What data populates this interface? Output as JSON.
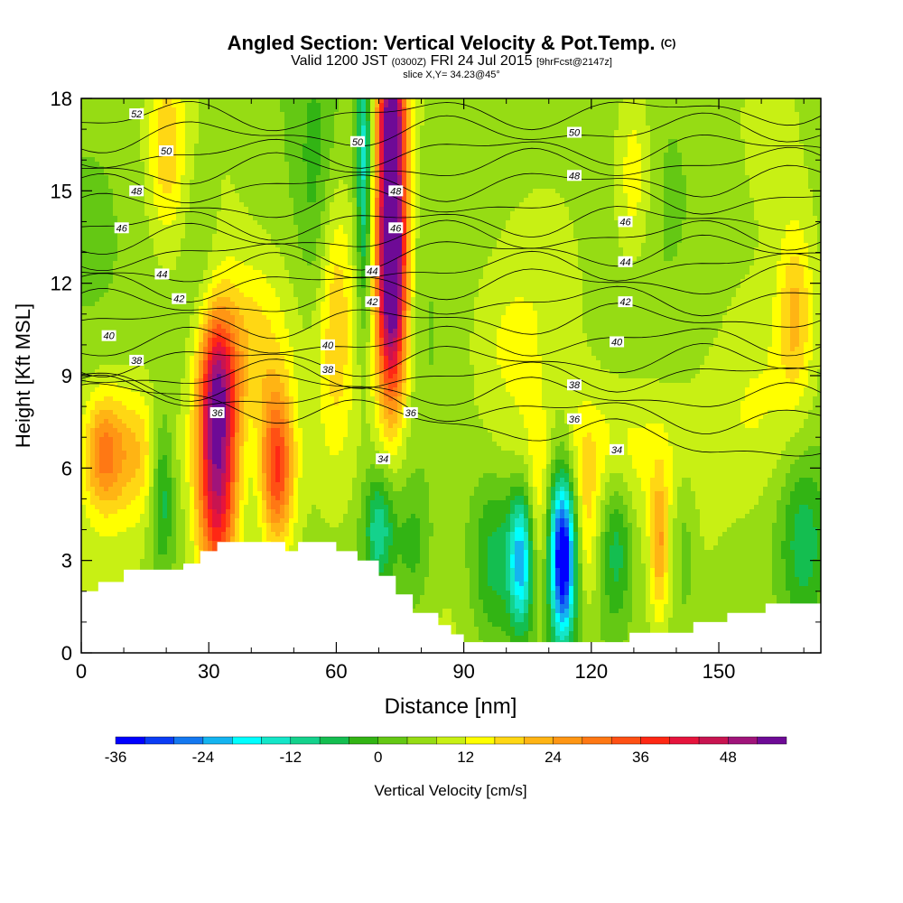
{
  "header": {
    "title_main": "Angled Section: Vertical Velocity & Pot.Temp.",
    "title_mark": "(C)",
    "valid_pre": "Valid 1200 JST",
    "valid_utc": "(0300Z)",
    "valid_date": "FRI 24 Jul 2015",
    "valid_fcst": "[9hrFcst@2147z]",
    "slice": "slice X,Y= 34.23@45°"
  },
  "colors": {
    "palette": [
      "#0000ff",
      "#0a3cf5",
      "#1478f0",
      "#14b4f0",
      "#00ffff",
      "#14e6c8",
      "#14d28c",
      "#14be50",
      "#32b414",
      "#64c814",
      "#96dc14",
      "#c8f014",
      "#ffff00",
      "#ffd714",
      "#ffb414",
      "#ff9614",
      "#ff7814",
      "#ff5014",
      "#ff2814",
      "#e6143c",
      "#c81450",
      "#a0147a",
      "#6e0a96"
    ],
    "terrain": "#ffffff",
    "contour": "#000000"
  },
  "chart_data": {
    "type": "heatmap",
    "xlabel": "Distance [nm]",
    "ylabel": "Height [Kft MSL]",
    "xlim": [
      0,
      174
    ],
    "ylim": [
      0,
      18
    ],
    "xticks": [
      0,
      30,
      60,
      90,
      120,
      150
    ],
    "yticks": [
      0,
      3,
      6,
      9,
      12,
      15,
      18
    ],
    "colorbar": {
      "label": "Vertical Velocity [cm/s]",
      "min": -36,
      "step": 4,
      "tick_values": [
        -36,
        -24,
        -12,
        0,
        12,
        24,
        36,
        48
      ]
    },
    "terrain": [
      [
        0,
        2.0
      ],
      [
        4,
        2.0
      ],
      [
        4,
        2.3
      ],
      [
        10,
        2.3
      ],
      [
        10,
        2.7
      ],
      [
        24,
        2.7
      ],
      [
        24,
        2.9
      ],
      [
        28,
        2.9
      ],
      [
        28,
        3.3
      ],
      [
        32,
        3.3
      ],
      [
        32,
        3.6
      ],
      [
        35,
        3.6
      ],
      [
        35,
        3.6
      ],
      [
        48,
        3.6
      ],
      [
        48,
        3.3
      ],
      [
        51,
        3.3
      ],
      [
        51,
        3.6
      ],
      [
        60,
        3.6
      ],
      [
        60,
        3.3
      ],
      [
        65,
        3.3
      ],
      [
        65,
        3.0
      ],
      [
        70,
        3.0
      ],
      [
        70,
        2.5
      ],
      [
        74,
        2.5
      ],
      [
        74,
        1.9
      ],
      [
        78,
        1.9
      ],
      [
        78,
        1.3
      ],
      [
        84,
        1.3
      ],
      [
        84,
        0.9
      ],
      [
        87,
        0.9
      ],
      [
        87,
        0.6
      ],
      [
        90,
        0.6
      ],
      [
        90,
        0.35
      ],
      [
        129,
        0.35
      ],
      [
        129,
        0.65
      ],
      [
        144,
        0.65
      ],
      [
        144,
        1.0
      ],
      [
        152,
        1.0
      ],
      [
        152,
        1.3
      ],
      [
        161,
        1.3
      ],
      [
        161,
        1.6
      ],
      [
        174,
        1.6
      ]
    ],
    "cells": [
      {
        "x": 32,
        "y": 6.0,
        "sx": 3.5,
        "sy": 2.8,
        "w": 46
      },
      {
        "x": 32,
        "y": 9.0,
        "sx": 3.0,
        "sy": 1.5,
        "w": 18
      },
      {
        "x": 46,
        "y": 6.0,
        "sx": 2.8,
        "sy": 1.8,
        "w": 30
      },
      {
        "x": 12,
        "y": 6.5,
        "sx": 7.0,
        "sy": 1.5,
        "w": 14
      },
      {
        "x": 5,
        "y": 6.5,
        "sx": 3.0,
        "sy": 1.3,
        "w": 14
      },
      {
        "x": 20,
        "y": 16.5,
        "sx": 3.0,
        "sy": 2.0,
        "w": 12
      },
      {
        "x": 73,
        "y": 14.5,
        "sx": 2.5,
        "sy": 2.8,
        "w": 52
      },
      {
        "x": 73,
        "y": 10.5,
        "sx": 2.6,
        "sy": 2.4,
        "w": 30
      },
      {
        "x": 73,
        "y": 17.5,
        "sx": 2.2,
        "sy": 1.0,
        "w": 26
      },
      {
        "x": 66.5,
        "y": 16.0,
        "sx": 1.2,
        "sy": 3.5,
        "w": -20
      },
      {
        "x": 19,
        "y": 5.5,
        "sx": 2.0,
        "sy": 1.8,
        "w": -16
      },
      {
        "x": 28,
        "y": 13.0,
        "sx": 3.0,
        "sy": 2.5,
        "w": -4
      },
      {
        "x": 70,
        "y": 4.0,
        "sx": 2.5,
        "sy": 1.3,
        "w": -18
      },
      {
        "x": 78,
        "y": 3.5,
        "sx": 3.0,
        "sy": 1.5,
        "w": -8
      },
      {
        "x": 97,
        "y": 3.0,
        "sx": 4.0,
        "sy": 2.0,
        "w": -12
      },
      {
        "x": 103.5,
        "y": 3.0,
        "sx": 2.0,
        "sy": 1.6,
        "w": -26
      },
      {
        "x": 113.5,
        "y": 3.0,
        "sx": 2.0,
        "sy": 1.8,
        "w": -34
      },
      {
        "x": 112,
        "y": 4.0,
        "sx": 2.5,
        "sy": 2.5,
        "w": -12
      },
      {
        "x": 126,
        "y": 3.5,
        "sx": 2.5,
        "sy": 1.8,
        "w": -12
      },
      {
        "x": 108,
        "y": 4.0,
        "sx": 2.0,
        "sy": 2.0,
        "w": 10
      },
      {
        "x": 119,
        "y": 4.0,
        "sx": 2.0,
        "sy": 2.0,
        "w": 10
      },
      {
        "x": 136,
        "y": 3.5,
        "sx": 1.5,
        "sy": 1.6,
        "w": 16
      },
      {
        "x": 142,
        "y": 3.5,
        "sx": 2.0,
        "sy": 2.0,
        "w": -6
      },
      {
        "x": 170,
        "y": 3.5,
        "sx": 4.0,
        "sy": 2.0,
        "w": -12
      },
      {
        "x": 160,
        "y": 8.0,
        "sx": 8.0,
        "sy": 2.5,
        "w": 8
      },
      {
        "x": 130,
        "y": 15.5,
        "sx": 3.0,
        "sy": 2.0,
        "w": 10
      },
      {
        "x": 168,
        "y": 11.0,
        "sx": 3.0,
        "sy": 2.0,
        "w": 14
      },
      {
        "x": 100,
        "y": 10.0,
        "sx": 8.0,
        "sy": 2.0,
        "w": 6
      },
      {
        "x": 60,
        "y": 11.0,
        "sx": 3.0,
        "sy": 3.0,
        "w": 12
      },
      {
        "x": 55,
        "y": 15.0,
        "sx": 3.0,
        "sy": 3.0,
        "w": -6
      },
      {
        "x": 120,
        "y": 6.5,
        "sx": 15.0,
        "sy": 1.5,
        "w": 8
      },
      {
        "x": 40,
        "y": 10.0,
        "sx": 6.0,
        "sy": 2.0,
        "w": 12
      }
    ],
    "isentropes": [
      {
        "theta": 34,
        "level": 7.5,
        "slope": -1.0
      },
      {
        "theta": 35,
        "level": 8.0,
        "slope": -0.5
      },
      {
        "theta": 36,
        "level": 8.5,
        "slope": -0.3
      },
      {
        "theta": 37,
        "level": 9.0,
        "slope": 0.0
      },
      {
        "theta": 38,
        "level": 9.5,
        "slope": 0.0
      },
      {
        "theta": 39,
        "level": 10.1,
        "slope": 0.1
      },
      {
        "theta": 40,
        "level": 10.8,
        "slope": 0.1
      },
      {
        "theta": 41,
        "level": 11.4,
        "slope": 0.1
      },
      {
        "theta": 42,
        "level": 12.0,
        "slope": 0.1
      },
      {
        "theta": 43,
        "level": 12.5,
        "slope": 0.1
      },
      {
        "theta": 44,
        "level": 13.0,
        "slope": 0.1
      },
      {
        "theta": 45,
        "level": 13.5,
        "slope": 0.1
      },
      {
        "theta": 46,
        "level": 14.0,
        "slope": 0.15
      },
      {
        "theta": 47,
        "level": 14.6,
        "slope": 0.15
      },
      {
        "theta": 48,
        "level": 15.2,
        "slope": 0.15
      },
      {
        "theta": 49,
        "level": 15.8,
        "slope": 0.15
      },
      {
        "theta": 50,
        "level": 16.3,
        "slope": 0.15
      },
      {
        "theta": 51,
        "level": 16.9,
        "slope": 0.15
      },
      {
        "theta": 52,
        "level": 17.5,
        "slope": 0.15
      }
    ],
    "contour_labels": [
      {
        "text": "52",
        "x": 13,
        "y": 17.5
      },
      {
        "text": "50",
        "x": 20,
        "y": 16.3
      },
      {
        "text": "48",
        "x": 13,
        "y": 15.0
      },
      {
        "text": "46",
        "x": 9.5,
        "y": 13.8
      },
      {
        "text": "44",
        "x": 19,
        "y": 12.3
      },
      {
        "text": "42",
        "x": 23,
        "y": 11.5
      },
      {
        "text": "40",
        "x": 6.5,
        "y": 10.3
      },
      {
        "text": "38",
        "x": 13,
        "y": 9.5
      },
      {
        "text": "36",
        "x": 32,
        "y": 7.8
      },
      {
        "text": "50",
        "x": 65,
        "y": 16.6
      },
      {
        "text": "48",
        "x": 74,
        "y": 15.0
      },
      {
        "text": "46",
        "x": 74,
        "y": 13.8
      },
      {
        "text": "44",
        "x": 68.5,
        "y": 12.4
      },
      {
        "text": "42",
        "x": 68.5,
        "y": 11.4
      },
      {
        "text": "40",
        "x": 58,
        "y": 10.0
      },
      {
        "text": "38",
        "x": 58,
        "y": 9.2
      },
      {
        "text": "36",
        "x": 77.5,
        "y": 7.8
      },
      {
        "text": "34",
        "x": 71,
        "y": 6.3
      },
      {
        "text": "50",
        "x": 116,
        "y": 16.9
      },
      {
        "text": "48",
        "x": 116,
        "y": 15.5
      },
      {
        "text": "46",
        "x": 128,
        "y": 14.0
      },
      {
        "text": "44",
        "x": 128,
        "y": 12.7
      },
      {
        "text": "42",
        "x": 128,
        "y": 11.4
      },
      {
        "text": "40",
        "x": 126,
        "y": 10.1
      },
      {
        "text": "38",
        "x": 116,
        "y": 8.7
      },
      {
        "text": "36",
        "x": 116,
        "y": 7.6
      },
      {
        "text": "34",
        "x": 126,
        "y": 6.6
      }
    ]
  }
}
